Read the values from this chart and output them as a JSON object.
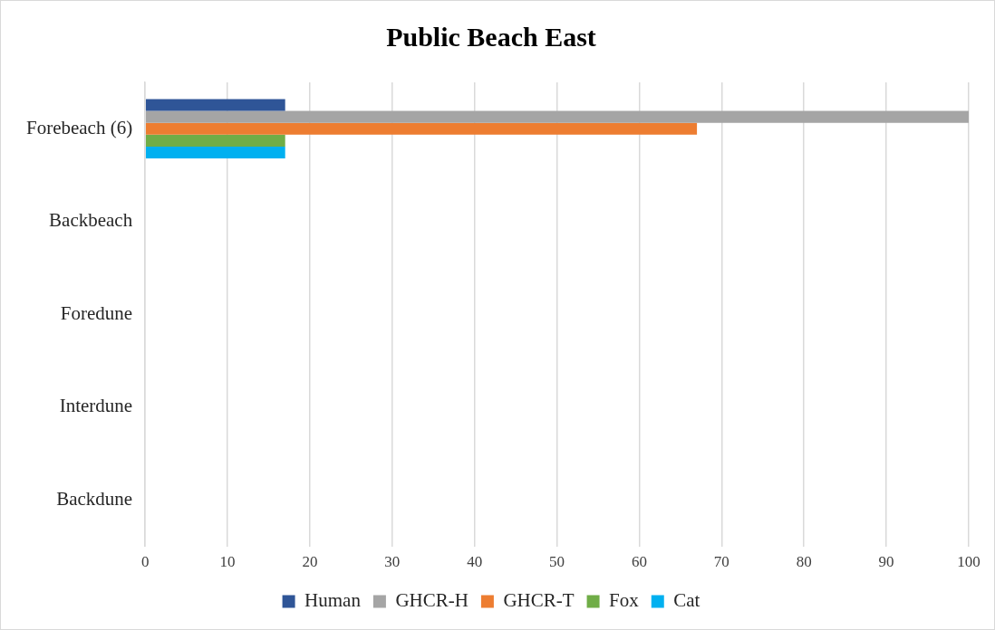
{
  "chart_data": {
    "type": "bar",
    "title": "Public Beach East",
    "orientation": "horizontal",
    "categories": [
      "Forebeach (6)",
      "Backbeach",
      "Foredune",
      "Interdune",
      "Backdune"
    ],
    "series": [
      {
        "name": "Human",
        "color": "#2f5597",
        "values": [
          17,
          0,
          0,
          0,
          0
        ]
      },
      {
        "name": "GHCR-H",
        "color": "#a5a5a5",
        "values": [
          100,
          0,
          0,
          0,
          0
        ]
      },
      {
        "name": "GHCR-T",
        "color": "#ed7d31",
        "values": [
          67,
          0,
          0,
          0,
          0
        ]
      },
      {
        "name": "Fox",
        "color": "#70ad47",
        "values": [
          17,
          0,
          0,
          0,
          0
        ]
      },
      {
        "name": "Cat",
        "color": "#00b0f0",
        "values": [
          17,
          0,
          0,
          0,
          0
        ]
      }
    ],
    "xlim": [
      0,
      100
    ],
    "xticks": [
      0,
      10,
      20,
      30,
      40,
      50,
      60,
      70,
      80,
      90,
      100
    ],
    "grid": "x",
    "legend": "bottom"
  }
}
